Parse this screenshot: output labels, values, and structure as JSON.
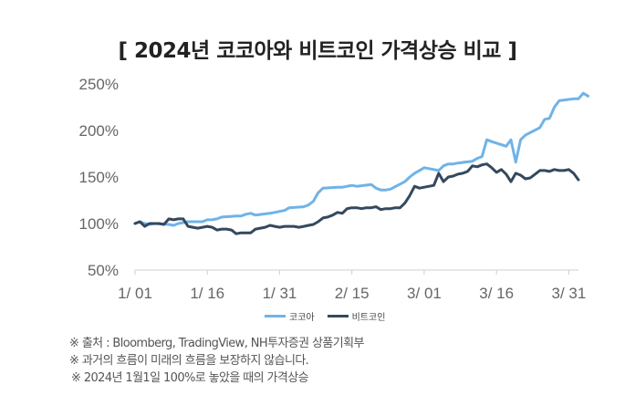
{
  "title": "[ 2024년 코코아와 비트코인 가격상승 비교 ]",
  "notes": [
    "※ 출처 : Bloomberg, TradingView, NH투자증권 상품기획부",
    "※ 과거의 흐름이 미래의 흐름을 보장하지 않습니다.",
    "※ 2024년 1월1일 100%로 놓았을 때의 가격상승"
  ],
  "chart_data": {
    "type": "line",
    "title": "[ 2024년 코코아와 비트코인 가격상승 비교 ]",
    "xlabel": "",
    "ylabel": "",
    "x_tick_labels": [
      "1/ 01",
      "1/ 16",
      "1/ 31",
      "2/ 15",
      "3/ 01",
      "3/ 16",
      "3/ 31"
    ],
    "x_tick_days": [
      0,
      15,
      30,
      45,
      60,
      75,
      90
    ],
    "y_tick_labels": [
      "50%",
      "100%",
      "150%",
      "200%",
      "250%"
    ],
    "y_tick_values": [
      50,
      100,
      150,
      200,
      250
    ],
    "xlim": [
      0,
      92
    ],
    "ylim": [
      50,
      250
    ],
    "grid": false,
    "legend_position": "bottom-center",
    "colors": {
      "cocoa": "#6fb3e8",
      "bitcoin": "#34495e"
    },
    "series": [
      {
        "name": "코코아",
        "key": "cocoa",
        "points": [
          [
            "2024-01-01",
            100
          ],
          [
            "2024-01-02",
            102
          ],
          [
            "2024-01-03",
            100
          ],
          [
            "2024-01-04",
            99
          ],
          [
            "2024-01-05",
            100
          ],
          [
            "2024-01-08",
            99
          ],
          [
            "2024-01-09",
            98
          ],
          [
            "2024-01-10",
            100
          ],
          [
            "2024-01-11",
            101
          ],
          [
            "2024-01-12",
            102
          ],
          [
            "2024-01-15",
            102
          ],
          [
            "2024-01-16",
            104
          ],
          [
            "2024-01-17",
            104
          ],
          [
            "2024-01-18",
            105
          ],
          [
            "2024-01-19",
            107
          ],
          [
            "2024-01-22",
            108
          ],
          [
            "2024-01-23",
            108
          ],
          [
            "2024-01-24",
            110
          ],
          [
            "2024-01-25",
            111
          ],
          [
            "2024-01-26",
            109
          ],
          [
            "2024-01-29",
            111
          ],
          [
            "2024-01-30",
            112
          ],
          [
            "2024-01-31",
            113
          ],
          [
            "2024-02-01",
            114
          ],
          [
            "2024-02-02",
            117
          ],
          [
            "2024-02-05",
            118
          ],
          [
            "2024-02-06",
            120
          ],
          [
            "2024-02-07",
            124
          ],
          [
            "2024-02-08",
            133
          ],
          [
            "2024-02-09",
            138
          ],
          [
            "2024-02-12",
            139
          ],
          [
            "2024-02-13",
            139
          ],
          [
            "2024-02-14",
            140
          ],
          [
            "2024-02-15",
            141
          ],
          [
            "2024-02-16",
            140
          ],
          [
            "2024-02-19",
            142
          ],
          [
            "2024-02-20",
            138
          ],
          [
            "2024-02-21",
            136
          ],
          [
            "2024-02-22",
            136
          ],
          [
            "2024-02-23",
            137
          ],
          [
            "2024-02-26",
            145
          ],
          [
            "2024-02-27",
            150
          ],
          [
            "2024-02-28",
            154
          ],
          [
            "2024-02-29",
            157
          ],
          [
            "2024-03-01",
            160
          ],
          [
            "2024-03-04",
            157
          ],
          [
            "2024-03-05",
            162
          ],
          [
            "2024-03-06",
            164
          ],
          [
            "2024-03-07",
            164
          ],
          [
            "2024-03-08",
            165
          ],
          [
            "2024-03-11",
            167
          ],
          [
            "2024-03-12",
            170
          ],
          [
            "2024-03-13",
            172
          ],
          [
            "2024-03-14",
            190
          ],
          [
            "2024-03-15",
            188
          ],
          [
            "2024-03-18",
            183
          ],
          [
            "2024-03-19",
            190
          ],
          [
            "2024-03-20",
            166
          ],
          [
            "2024-03-21",
            190
          ],
          [
            "2024-03-22",
            195
          ],
          [
            "2024-03-25",
            203
          ],
          [
            "2024-03-26",
            212
          ],
          [
            "2024-03-27",
            213
          ],
          [
            "2024-03-28",
            225
          ],
          [
            "2024-03-29",
            232
          ],
          [
            "2024-04-01",
            234
          ],
          [
            "2024-04-02",
            234
          ],
          [
            "2024-04-03",
            240
          ],
          [
            "2024-04-04",
            237
          ]
        ]
      },
      {
        "name": "비트코인",
        "key": "bitcoin",
        "points": [
          [
            "2024-01-01",
            100
          ],
          [
            "2024-01-02",
            102
          ],
          [
            "2024-01-03",
            97
          ],
          [
            "2024-01-04",
            100
          ],
          [
            "2024-01-05",
            100
          ],
          [
            "2024-01-06",
            100
          ],
          [
            "2024-01-07",
            99
          ],
          [
            "2024-01-08",
            105
          ],
          [
            "2024-01-09",
            104
          ],
          [
            "2024-01-10",
            105
          ],
          [
            "2024-01-11",
            105
          ],
          [
            "2024-01-12",
            97
          ],
          [
            "2024-01-13",
            96
          ],
          [
            "2024-01-14",
            95
          ],
          [
            "2024-01-15",
            96
          ],
          [
            "2024-01-16",
            97
          ],
          [
            "2024-01-17",
            96
          ],
          [
            "2024-01-18",
            93
          ],
          [
            "2024-01-19",
            94
          ],
          [
            "2024-01-20",
            94
          ],
          [
            "2024-01-21",
            93
          ],
          [
            "2024-01-22",
            89
          ],
          [
            "2024-01-23",
            90
          ],
          [
            "2024-01-24",
            90
          ],
          [
            "2024-01-25",
            90
          ],
          [
            "2024-01-26",
            94
          ],
          [
            "2024-01-27",
            95
          ],
          [
            "2024-01-28",
            96
          ],
          [
            "2024-01-29",
            98
          ],
          [
            "2024-01-30",
            97
          ],
          [
            "2024-01-31",
            96
          ],
          [
            "2024-02-01",
            97
          ],
          [
            "2024-02-02",
            97
          ],
          [
            "2024-02-03",
            97
          ],
          [
            "2024-02-04",
            96
          ],
          [
            "2024-02-05",
            97
          ],
          [
            "2024-02-06",
            98
          ],
          [
            "2024-02-07",
            99
          ],
          [
            "2024-02-08",
            102
          ],
          [
            "2024-02-09",
            106
          ],
          [
            "2024-02-10",
            107
          ],
          [
            "2024-02-11",
            109
          ],
          [
            "2024-02-12",
            112
          ],
          [
            "2024-02-13",
            111
          ],
          [
            "2024-02-14",
            116
          ],
          [
            "2024-02-15",
            117
          ],
          [
            "2024-02-16",
            117
          ],
          [
            "2024-02-17",
            116
          ],
          [
            "2024-02-18",
            117
          ],
          [
            "2024-02-19",
            117
          ],
          [
            "2024-02-20",
            118
          ],
          [
            "2024-02-21",
            115
          ],
          [
            "2024-02-22",
            116
          ],
          [
            "2024-02-23",
            116
          ],
          [
            "2024-02-24",
            117
          ],
          [
            "2024-02-25",
            117
          ],
          [
            "2024-02-26",
            122
          ],
          [
            "2024-02-27",
            130
          ],
          [
            "2024-02-28",
            140
          ],
          [
            "2024-02-29",
            138
          ],
          [
            "2024-03-01",
            139
          ],
          [
            "2024-03-02",
            140
          ],
          [
            "2024-03-03",
            141
          ],
          [
            "2024-03-04",
            154
          ],
          [
            "2024-03-05",
            145
          ],
          [
            "2024-03-06",
            150
          ],
          [
            "2024-03-07",
            151
          ],
          [
            "2024-03-08",
            153
          ],
          [
            "2024-03-09",
            154
          ],
          [
            "2024-03-10",
            156
          ],
          [
            "2024-03-11",
            162
          ],
          [
            "2024-03-12",
            161
          ],
          [
            "2024-03-13",
            163
          ],
          [
            "2024-03-14",
            164
          ],
          [
            "2024-03-15",
            160
          ],
          [
            "2024-03-16",
            155
          ],
          [
            "2024-03-17",
            158
          ],
          [
            "2024-03-18",
            153
          ],
          [
            "2024-03-19",
            145
          ],
          [
            "2024-03-20",
            154
          ],
          [
            "2024-03-21",
            152
          ],
          [
            "2024-03-22",
            148
          ],
          [
            "2024-03-23",
            149
          ],
          [
            "2024-03-24",
            153
          ],
          [
            "2024-03-25",
            157
          ],
          [
            "2024-03-26",
            157
          ],
          [
            "2024-03-27",
            156
          ],
          [
            "2024-03-28",
            158
          ],
          [
            "2024-03-29",
            157
          ],
          [
            "2024-03-30",
            157
          ],
          [
            "2024-03-31",
            158
          ],
          [
            "2024-04-01",
            154
          ],
          [
            "2024-04-02",
            147
          ]
        ]
      }
    ]
  }
}
